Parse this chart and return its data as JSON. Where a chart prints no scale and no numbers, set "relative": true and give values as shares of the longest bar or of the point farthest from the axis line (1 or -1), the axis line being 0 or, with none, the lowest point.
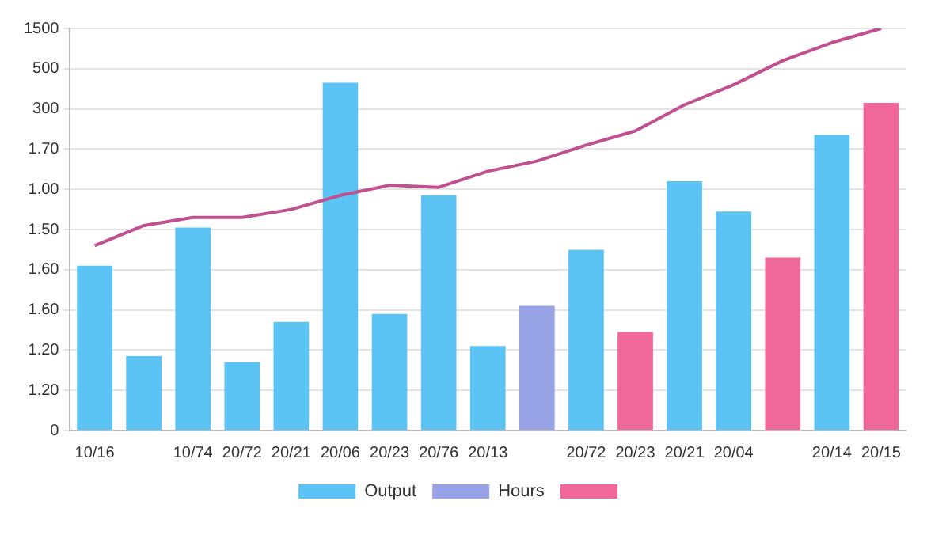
{
  "chart_data": {
    "type": "bar",
    "relative": true,
    "categories": [
      "10/16",
      null,
      "10/74",
      "20/72",
      "20/21",
      "20/06",
      "20/23",
      "20/76",
      "20/13",
      null,
      "20/72",
      "20/23",
      "20/21",
      "20/04",
      null,
      "20/14",
      "20/15"
    ],
    "series": [
      {
        "name": "Output",
        "color": "#5bc4f5",
        "values": [
          0.41,
          0.185,
          0.505,
          0.17,
          0.27,
          0.865,
          0.29,
          0.585,
          0.21,
          null,
          0.45,
          null,
          0.62,
          0.545,
          null,
          0.735,
          null
        ]
      },
      {
        "name": "Hours",
        "color": "#98a3e6",
        "values": [
          null,
          null,
          null,
          null,
          null,
          null,
          null,
          null,
          null,
          0.31,
          null,
          null,
          null,
          null,
          null,
          null,
          null
        ]
      },
      {
        "color": "#f0679a",
        "values": [
          null,
          null,
          null,
          null,
          null,
          null,
          null,
          null,
          null,
          null,
          null,
          0.245,
          null,
          null,
          0.43,
          null,
          0.815
        ]
      },
      {
        "type": "line",
        "color": "#c0508f",
        "values": [
          0.46,
          0.51,
          0.53,
          0.53,
          0.55,
          0.585,
          0.61,
          0.605,
          0.645,
          0.67,
          0.71,
          0.745,
          0.81,
          0.86,
          0.92,
          0.965,
          1
        ]
      }
    ],
    "annotations": [
      "0",
      "1.20",
      "1.20",
      "1.60",
      "1.60",
      "1.50",
      "1.00",
      "1.70",
      "300",
      "500",
      "1500"
    ],
    "grid": "y",
    "legend": "bottom",
    "marker": "none"
  }
}
